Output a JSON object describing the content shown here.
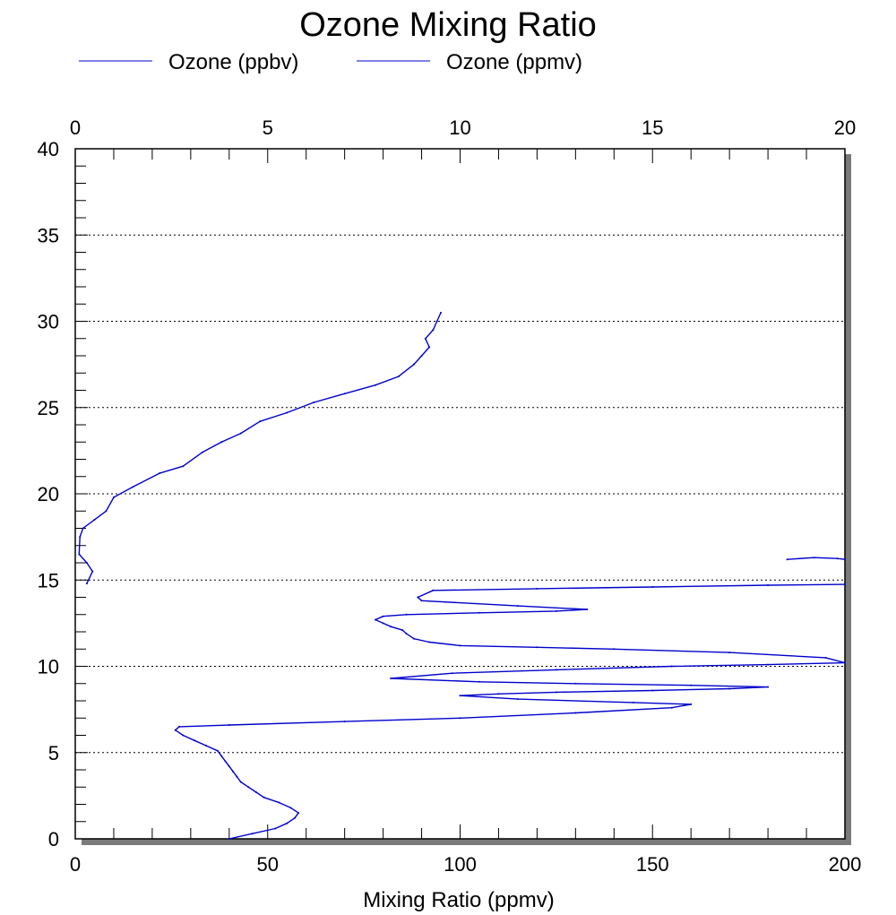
{
  "chart_data": {
    "type": "line",
    "title": "Ozone Mixing Ratio",
    "xlabel": "Mixing Ratio (ppmv)",
    "ylabel": "",
    "x_bottom": {
      "lim": [
        0,
        200
      ],
      "ticks": [
        0,
        50,
        100,
        150,
        200
      ]
    },
    "x_top": {
      "lim": [
        0,
        20
      ],
      "ticks": [
        0,
        5,
        10,
        15,
        20
      ]
    },
    "y": {
      "lim": [
        0,
        40
      ],
      "ticks": [
        0,
        5,
        10,
        15,
        20,
        25,
        30,
        35,
        40
      ]
    },
    "grid": "horizontal dotted",
    "legend_position": "top-left",
    "line_color": "#0000cc",
    "series": [
      {
        "name": "Ozone (ppbv)",
        "axis": "bottom",
        "x": [
          40,
          46,
          52,
          55,
          57,
          58,
          56,
          53,
          49,
          47,
          45,
          43,
          42,
          41,
          40,
          39,
          38,
          37,
          34,
          31,
          28,
          26,
          27,
          40,
          70,
          100,
          130,
          155,
          160,
          145,
          115,
          100,
          110,
          125,
          150,
          170,
          180,
          160,
          130,
          105,
          82,
          98,
          125,
          155,
          180,
          200,
          195,
          170,
          140,
          120,
          100,
          92,
          88,
          86,
          85,
          82,
          80,
          78,
          80,
          86,
          105,
          125,
          133,
          115,
          90,
          89,
          93,
          120,
          150,
          180,
          200
        ],
        "y": [
          0,
          0.3,
          0.6,
          0.9,
          1.2,
          1.5,
          1.8,
          2.1,
          2.4,
          2.7,
          3.0,
          3.3,
          3.6,
          3.9,
          4.2,
          4.5,
          4.8,
          5.1,
          5.4,
          5.7,
          6.0,
          6.3,
          6.5,
          6.6,
          6.8,
          7.0,
          7.3,
          7.6,
          7.8,
          7.9,
          8.1,
          8.3,
          8.4,
          8.5,
          8.6,
          8.7,
          8.8,
          8.9,
          9.0,
          9.1,
          9.3,
          9.6,
          9.8,
          10.0,
          10.1,
          10.2,
          10.5,
          10.8,
          11.0,
          11.1,
          11.2,
          11.4,
          11.6,
          11.9,
          12.1,
          12.3,
          12.5,
          12.7,
          12.9,
          13.0,
          13.1,
          13.2,
          13.3,
          13.5,
          13.8,
          14.0,
          14.4,
          14.5,
          14.6,
          14.7,
          14.75
        ]
      },
      {
        "name": "Ozone (ppmv)",
        "axis": "top",
        "x": [
          0.3,
          0.45,
          0.3,
          0.1,
          0.12,
          0.2,
          0.5,
          0.8,
          1.0,
          1.5,
          2.2,
          2.8,
          3.3,
          3.8,
          4.3,
          4.8,
          5.5,
          6.2,
          7.0,
          7.8,
          8.4,
          8.8,
          9.0,
          9.2,
          9.1,
          9.3,
          9.4,
          9.5
        ],
        "y": [
          14.8,
          15.5,
          16.0,
          16.5,
          17.5,
          18.0,
          18.5,
          19.0,
          19.8,
          20.4,
          21.2,
          21.6,
          22.4,
          23.0,
          23.5,
          24.2,
          24.7,
          25.3,
          25.8,
          26.3,
          26.8,
          27.5,
          28.0,
          28.5,
          29.0,
          29.5,
          30.0,
          30.5
        ]
      },
      {
        "name": "",
        "axis": "bottom",
        "x": [
          185,
          192,
          198,
          200
        ],
        "y": [
          16.2,
          16.3,
          16.25,
          16.2
        ]
      }
    ]
  }
}
